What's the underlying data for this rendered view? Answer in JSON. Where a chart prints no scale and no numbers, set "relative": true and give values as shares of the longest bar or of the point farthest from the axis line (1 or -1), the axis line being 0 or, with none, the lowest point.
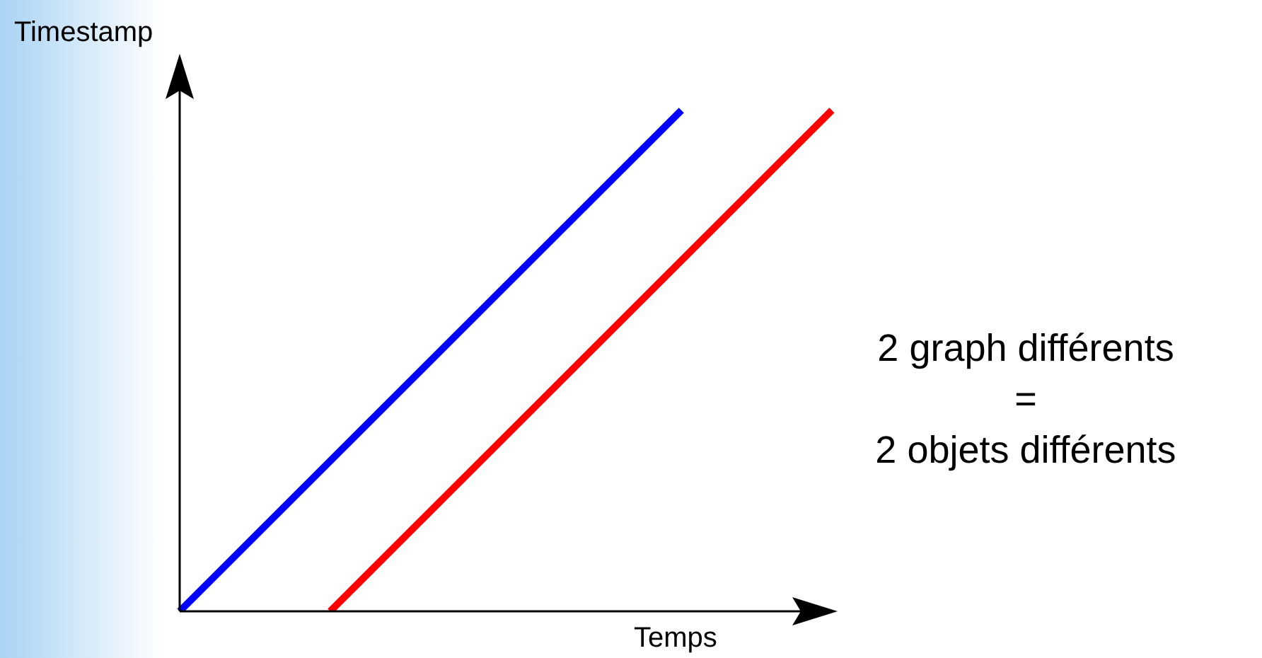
{
  "chart_data": {
    "type": "line",
    "relative": true,
    "xlabel": "Temps",
    "ylabel": "Timestamp",
    "annotations": [
      "2 graph différents",
      "=",
      "2 objets différents"
    ],
    "tick_labels": false,
    "marker": "none",
    "line_style": "solid",
    "categories": [
      null,
      null,
      null,
      null,
      null,
      null,
      null,
      null,
      null,
      null,
      null,
      null,
      null,
      null
    ],
    "series": [
      {
        "color": "#0000ff",
        "values": [
          0,
          null,
          null,
          null,
          null,
          null,
          null,
          null,
          null,
          null,
          1,
          null,
          null,
          null
        ]
      },
      {
        "color": "#ff0000",
        "values": [
          null,
          null,
          null,
          0,
          null,
          null,
          null,
          null,
          null,
          null,
          null,
          null,
          null,
          1
        ]
      }
    ]
  }
}
